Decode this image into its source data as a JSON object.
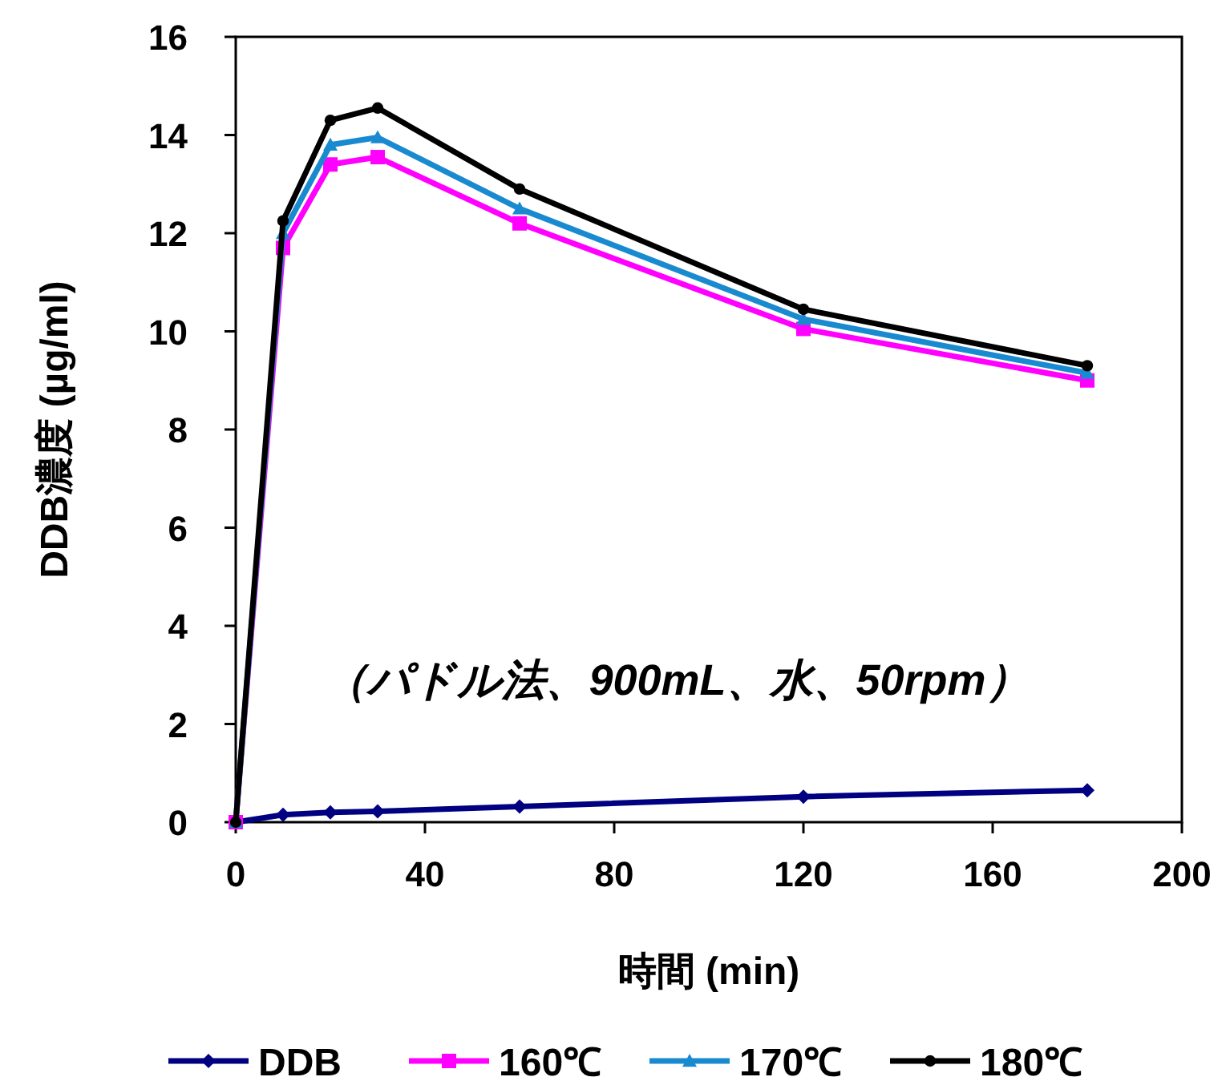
{
  "chart_data": {
    "type": "line",
    "xlabel": "時間 (min)",
    "ylabel": "DDB濃度 (µg/ml)",
    "x": [
      0,
      10,
      20,
      30,
      60,
      120,
      180
    ],
    "series": [
      {
        "name": "DDB",
        "color": "#000080",
        "marker": "diamond",
        "values": [
          0,
          0.15,
          0.2,
          0.22,
          0.32,
          0.52,
          0.65
        ]
      },
      {
        "name": "160℃",
        "color": "#ff00ff",
        "marker": "square",
        "values": [
          0,
          11.7,
          13.4,
          13.55,
          12.2,
          10.05,
          9.0
        ]
      },
      {
        "name": "170℃",
        "color": "#1a8ad0",
        "marker": "triangle",
        "values": [
          0,
          12.0,
          13.8,
          13.95,
          12.5,
          10.25,
          9.15
        ]
      },
      {
        "name": "180℃",
        "color": "#000000",
        "marker": "circle",
        "values": [
          0,
          12.25,
          14.3,
          14.55,
          12.9,
          10.45,
          9.3
        ]
      }
    ],
    "xlim": [
      0,
      200
    ],
    "xticks": [
      0,
      40,
      80,
      120,
      160,
      200
    ],
    "ylim": [
      0,
      16
    ],
    "yticks": [
      0,
      2,
      4,
      6,
      8,
      10,
      12,
      14,
      16
    ],
    "grid": false,
    "legend": "bottom",
    "line_style": "solid",
    "annotations": [
      "（パドル法、900mL、水、50rpm）"
    ]
  }
}
